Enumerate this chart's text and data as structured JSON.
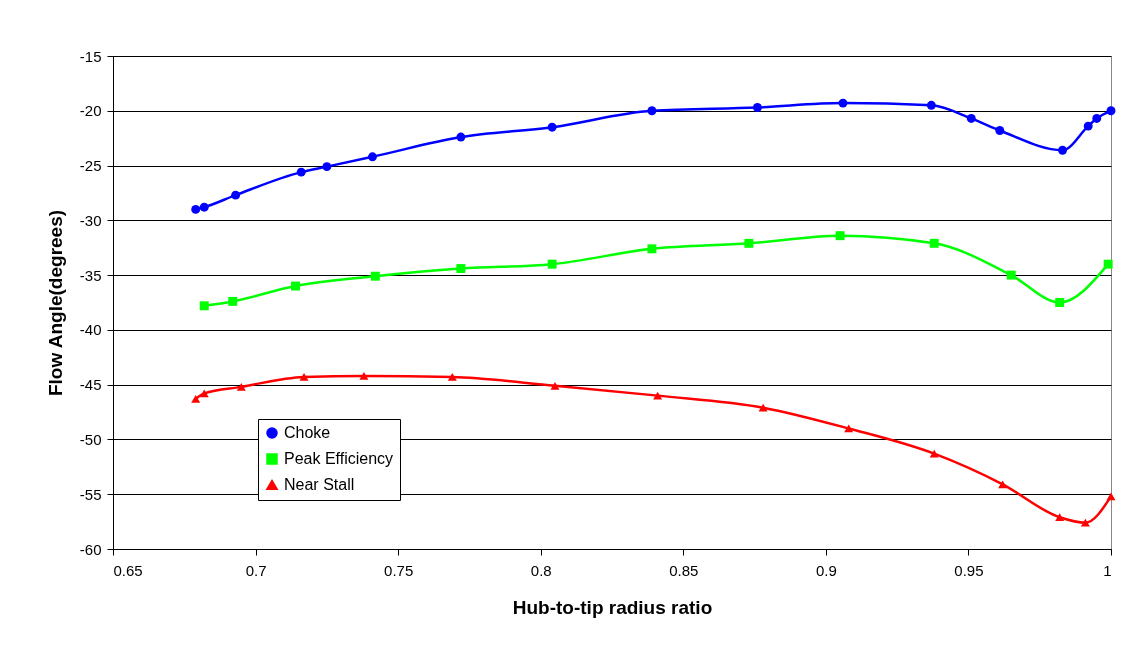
{
  "chart_data": {
    "type": "line",
    "xlabel": "Hub-to-tip radius ratio",
    "ylabel": "Flow Angle(degrees)",
    "xlim": [
      0.65,
      1
    ],
    "xticks": [
      0.65,
      0.7,
      0.75,
      0.8,
      0.85,
      0.9,
      0.95,
      1
    ],
    "ylim": [
      -60,
      -15
    ],
    "yticks": [
      -60,
      -55,
      -50,
      -45,
      -40,
      -35,
      -30,
      -25,
      -20,
      -15
    ],
    "grid": "y",
    "legend": "bottom left",
    "line_style": "solid",
    "series": [
      {
        "name": "Choke",
        "color": "#0000ff",
        "marker": "circle",
        "x": [
          0.679,
          0.682,
          0.693,
          0.716,
          0.725,
          0.741,
          0.772,
          0.804,
          0.839,
          0.876,
          0.906,
          0.937,
          0.951,
          0.961,
          0.983,
          0.992,
          0.995,
          1
        ],
        "values": [
          -29.0,
          -28.8,
          -27.7,
          -25.6,
          -25.1,
          -24.2,
          -22.4,
          -21.5,
          -20.0,
          -19.7,
          -19.3,
          -19.5,
          -20.7,
          -21.8,
          -23.6,
          -21.4,
          -20.7,
          -20.0
        ]
      },
      {
        "name": "Peak Efficiency",
        "color": "#00ff00",
        "marker": "square",
        "x": [
          0.682,
          0.692,
          0.714,
          0.742,
          0.772,
          0.804,
          0.839,
          0.873,
          0.905,
          0.938,
          0.965,
          0.982,
          0.999
        ],
        "values": [
          -37.8,
          -37.4,
          -36.0,
          -35.1,
          -34.4,
          -34.0,
          -32.6,
          -32.1,
          -31.4,
          -32.1,
          -35.0,
          -37.5,
          -34.0
        ]
      },
      {
        "name": "Near Stall",
        "color": "#ff0000",
        "marker": "triangle",
        "x": [
          0.679,
          0.682,
          0.695,
          0.717,
          0.738,
          0.769,
          0.805,
          0.841,
          0.878,
          0.908,
          0.938,
          0.962,
          0.982,
          0.991,
          1
        ],
        "values": [
          -46.3,
          -45.8,
          -45.2,
          -44.3,
          -44.2,
          -44.3,
          -45.1,
          -46.0,
          -47.1,
          -49.0,
          -51.3,
          -54.1,
          -57.1,
          -57.6,
          -55.2
        ]
      }
    ]
  }
}
